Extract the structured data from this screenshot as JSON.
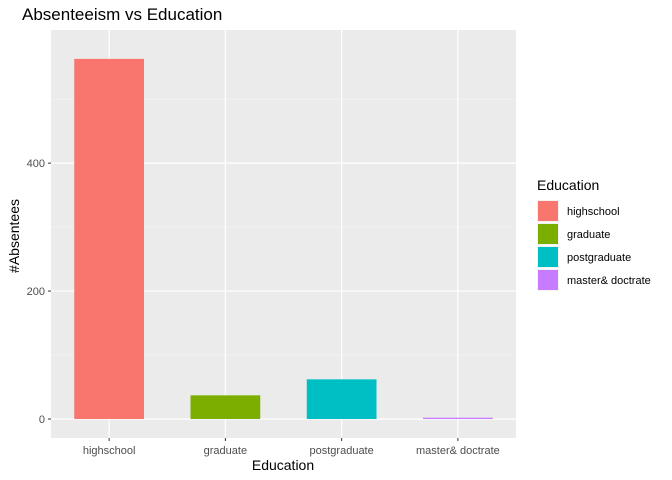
{
  "chart_data": {
    "type": "bar",
    "title": "Absenteeism vs Education",
    "xlabel": "Education",
    "ylabel": "#Absentees",
    "categories": [
      "highschool",
      "graduate",
      "postgraduate",
      "master& doctrate"
    ],
    "values": [
      563,
      37,
      62,
      2
    ],
    "colors": [
      "#F8766D",
      "#7CAE00",
      "#00BFC4",
      "#C77CFF"
    ],
    "ylim": [
      0,
      580
    ],
    "yticks": [
      0,
      200,
      400
    ],
    "grid": true,
    "legend": {
      "title": "Education",
      "position": "right",
      "entries": [
        "highschool",
        "graduate",
        "postgraduate",
        "master& doctrate"
      ]
    }
  }
}
